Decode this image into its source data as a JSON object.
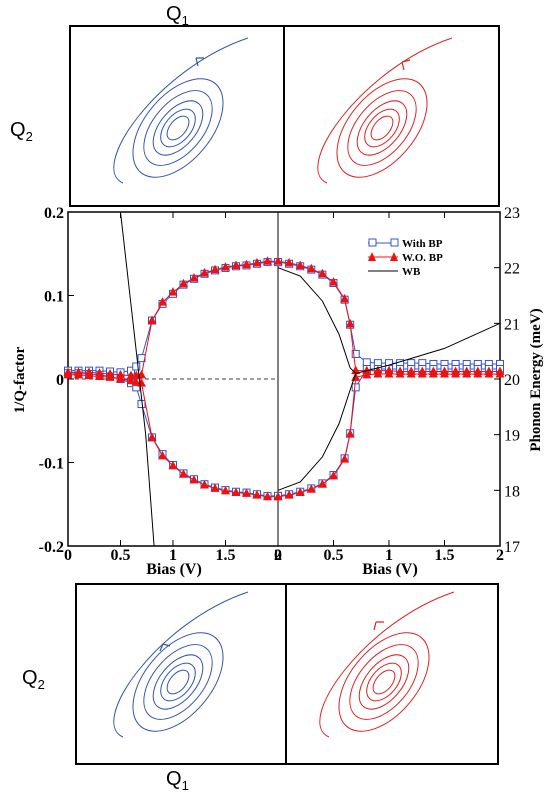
{
  "top_panels": {
    "q1_label": "Q",
    "q1_sub": "1",
    "q2_label": "Q",
    "q2_sub": "2",
    "left_color": "#3355aa",
    "right_color": "#e02020"
  },
  "bottom_panels": {
    "q1_label": "Q",
    "q1_sub": "1",
    "q2_label": "Q",
    "q2_sub": "2",
    "left_color": "#3355aa",
    "right_color": "#e02020"
  },
  "chart_data": {
    "type": "line",
    "ylabel_left": "1/Q-factor",
    "ylabel_right": "Phonon Energy (meV)",
    "xlabel_left": "Bias (V)",
    "xlabel_right": "Bias (V)",
    "left_ylim": [
      -0.2,
      0.2
    ],
    "right_ylim": [
      17,
      23
    ],
    "left_yticks": [
      "0.2",
      "0.1",
      "0",
      "-0.1",
      "-0.2"
    ],
    "right_yticks": [
      "23",
      "22",
      "21",
      "20",
      "19",
      "18",
      "17"
    ],
    "left_xticks": [
      "0",
      "0.5",
      "1",
      "1.5",
      "2"
    ],
    "right_xticks": [
      "0",
      "0.5",
      "1",
      "1.5",
      "2"
    ],
    "x_axis_note": "left half: bias decreasing 2 to 0 plotted as 0..2 label reversed; right half: 0 to 2",
    "legend": [
      {
        "name": "With BP",
        "color": "#3355cc",
        "marker": "square-open"
      },
      {
        "name": "W.O. BP",
        "color": "#ee1111",
        "marker": "triangle-filled"
      },
      {
        "name": "WB",
        "color": "#000000",
        "marker": "line"
      }
    ],
    "legend_position": "top-right",
    "series": [
      {
        "name": "With BP",
        "color": "#3355cc",
        "panel": "left",
        "x": [
          0,
          0.1,
          0.2,
          0.3,
          0.4,
          0.5,
          0.6,
          0.65,
          0.7,
          0.8,
          0.9,
          1.0,
          1.1,
          1.2,
          1.3,
          1.4,
          1.5,
          1.6,
          1.7,
          1.8,
          1.9,
          2.0
        ],
        "upper": [
          0.01,
          0.01,
          0.01,
          0.01,
          0.009,
          0.008,
          0.01,
          0.015,
          0.025,
          0.07,
          0.09,
          0.102,
          0.113,
          0.12,
          0.126,
          0.13,
          0.133,
          0.135,
          0.136,
          0.138,
          0.14,
          0.14
        ],
        "lower": [
          0.007,
          0.007,
          0.006,
          0.005,
          0.003,
          0.0,
          -0.005,
          -0.01,
          -0.03,
          -0.07,
          -0.09,
          -0.103,
          -0.113,
          -0.12,
          -0.126,
          -0.13,
          -0.133,
          -0.135,
          -0.136,
          -0.138,
          -0.14,
          -0.14
        ]
      },
      {
        "name": "W.O. BP",
        "color": "#ee1111",
        "panel": "left",
        "x": [
          0,
          0.1,
          0.2,
          0.3,
          0.4,
          0.5,
          0.6,
          0.65,
          0.7,
          0.8,
          0.9,
          1.0,
          1.1,
          1.2,
          1.3,
          1.4,
          1.5,
          1.6,
          1.7,
          1.8,
          1.9,
          2.0
        ],
        "upper": [
          0.008,
          0.008,
          0.008,
          0.007,
          0.006,
          0.005,
          0.004,
          0.004,
          0.005,
          0.07,
          0.092,
          0.104,
          0.114,
          0.121,
          0.127,
          0.131,
          0.134,
          0.136,
          0.137,
          0.139,
          0.141,
          0.141
        ],
        "lower": [
          0.005,
          0.005,
          0.004,
          0.003,
          0.002,
          0.0,
          -0.002,
          -0.004,
          -0.005,
          -0.07,
          -0.092,
          -0.104,
          -0.114,
          -0.121,
          -0.127,
          -0.131,
          -0.134,
          -0.136,
          -0.137,
          -0.139,
          -0.141,
          -0.141
        ]
      },
      {
        "name": "With BP",
        "color": "#3355cc",
        "panel": "right",
        "x": [
          0,
          0.1,
          0.2,
          0.3,
          0.4,
          0.5,
          0.6,
          0.65,
          0.7,
          0.8,
          0.9,
          1.0,
          1.1,
          1.2,
          1.3,
          1.4,
          1.5,
          1.6,
          1.7,
          1.8,
          1.9,
          2.0
        ],
        "upper": [
          0.14,
          0.138,
          0.135,
          0.131,
          0.125,
          0.115,
          0.095,
          0.065,
          0.03,
          0.02,
          0.019,
          0.019,
          0.019,
          0.019,
          0.019,
          0.018,
          0.018,
          0.018,
          0.018,
          0.018,
          0.018,
          0.018
        ],
        "lower": [
          -0.14,
          -0.138,
          -0.135,
          -0.131,
          -0.125,
          -0.115,
          -0.095,
          -0.065,
          -0.01,
          0.012,
          0.012,
          0.012,
          0.012,
          0.012,
          0.012,
          0.012,
          0.012,
          0.012,
          0.012,
          0.012,
          0.012,
          0.012
        ]
      },
      {
        "name": "W.O. BP",
        "color": "#ee1111",
        "panel": "right",
        "x": [
          0,
          0.1,
          0.2,
          0.3,
          0.4,
          0.5,
          0.6,
          0.65,
          0.7,
          0.8,
          0.9,
          1.0,
          1.1,
          1.2,
          1.3,
          1.4,
          1.5,
          1.6,
          1.7,
          1.8,
          1.9,
          2.0
        ],
        "upper": [
          0.141,
          0.139,
          0.136,
          0.132,
          0.126,
          0.116,
          0.096,
          0.066,
          0.01,
          0.01,
          0.01,
          0.01,
          0.009,
          0.009,
          0.009,
          0.009,
          0.009,
          0.009,
          0.009,
          0.009,
          0.009,
          0.009
        ],
        "lower": [
          -0.141,
          -0.139,
          -0.136,
          -0.132,
          -0.126,
          -0.116,
          -0.096,
          -0.066,
          0.002,
          0.005,
          0.006,
          0.006,
          0.006,
          0.006,
          0.006,
          0.006,
          0.006,
          0.006,
          0.006,
          0.006,
          0.006,
          0.006
        ]
      }
    ]
  }
}
